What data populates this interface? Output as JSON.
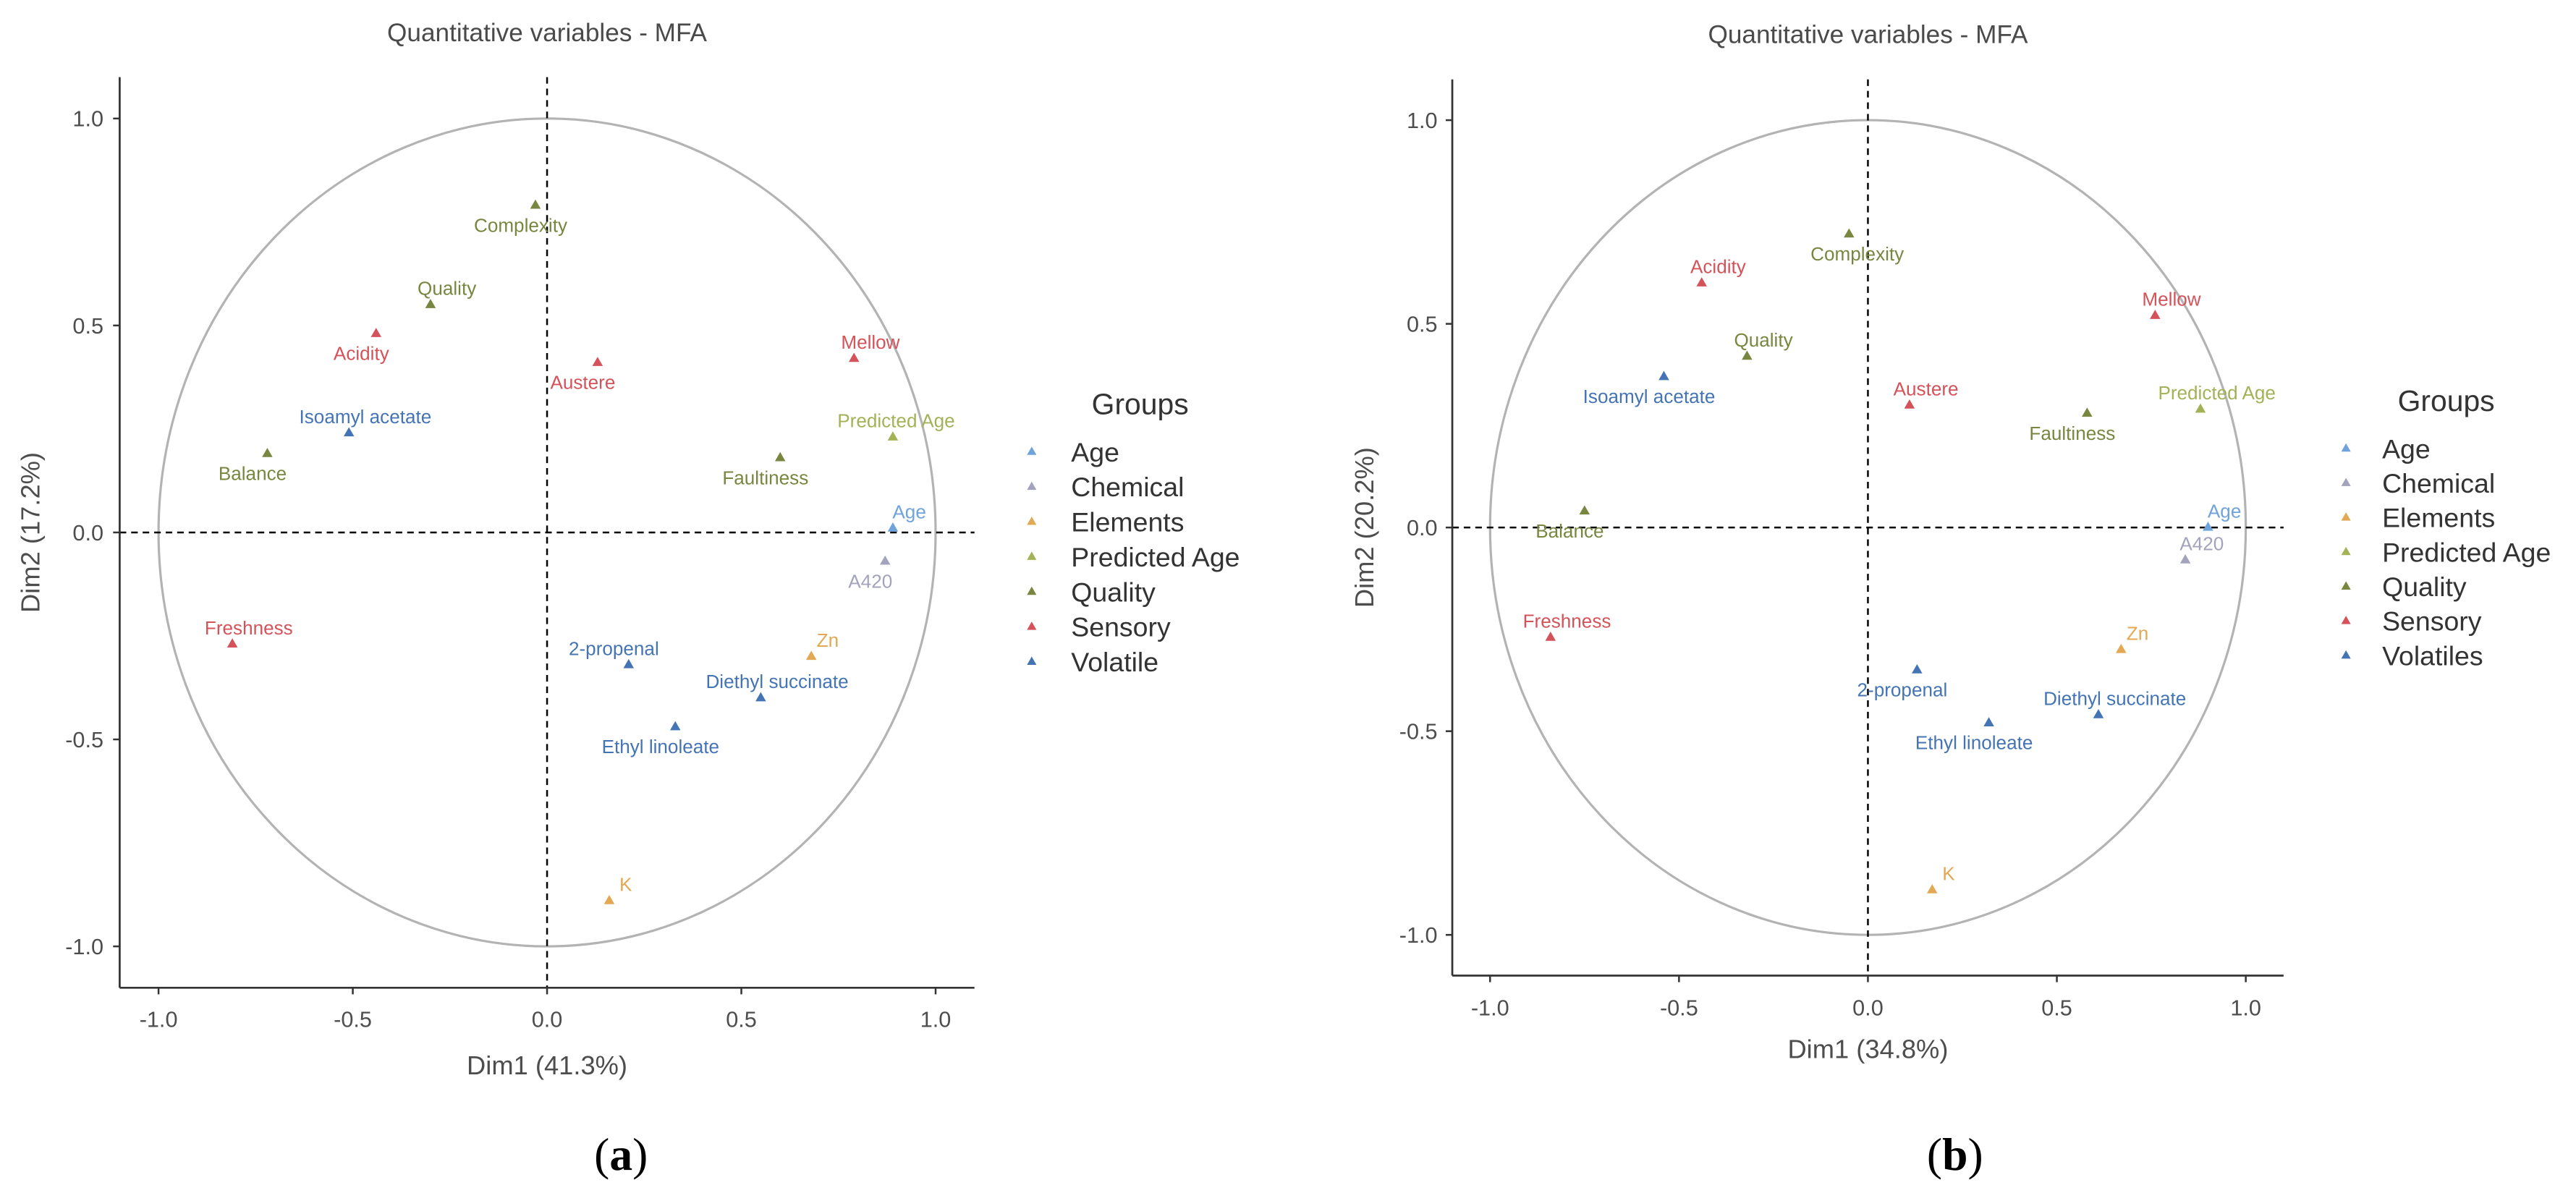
{
  "chart_data": [
    {
      "type": "scatter",
      "panel_label": [
        "(",
        "a",
        ")"
      ],
      "title": "Quantitative variables - MFA",
      "xlabel": "Dim1 (41.3%)",
      "ylabel": "Dim2 (17.2%)",
      "xlim": [
        -1.1,
        1.1
      ],
      "ylim": [
        -1.1,
        1.1
      ],
      "xticks": [
        "-1.0",
        "-0.5",
        "0.0",
        "0.5",
        "1.0"
      ],
      "yticks": [
        "-1.0",
        "-0.5",
        "0.0",
        "0.5",
        "1.0"
      ],
      "correlation_circle_radius": 1,
      "reference_lines": {
        "x": 0,
        "y": 0,
        "style": "dashed"
      },
      "colors": {
        "axis": "#333333",
        "circle": "#b3b3b3",
        "reference": "#000000"
      },
      "legend": {
        "title": "Groups",
        "position": "right",
        "items": [
          {
            "name": "Age",
            "color": "#6fa3dc"
          },
          {
            "name": "Chemical",
            "color": "#a3a3bd"
          },
          {
            "name": "Elements",
            "color": "#e3a853"
          },
          {
            "name": "Predicted Age",
            "color": "#a3b257"
          },
          {
            "name": "Quality",
            "color": "#788640"
          },
          {
            "name": "Sensory",
            "color": "#d4535a"
          },
          {
            "name": "Volatile",
            "color": "#4474b4"
          }
        ]
      },
      "points": [
        {
          "label": "Complexity",
          "group": "Quality",
          "x": -0.03,
          "y": 0.79,
          "label_pos": "below-left"
        },
        {
          "label": "Quality",
          "group": "Quality",
          "x": -0.3,
          "y": 0.55,
          "label_pos": "above-right"
        },
        {
          "label": "Acidity",
          "group": "Sensory",
          "x": -0.44,
          "y": 0.48,
          "label_pos": "below-left"
        },
        {
          "label": "Austere",
          "group": "Sensory",
          "x": 0.13,
          "y": 0.41,
          "label_pos": "below-left"
        },
        {
          "label": "Mellow",
          "group": "Sensory",
          "x": 0.79,
          "y": 0.42,
          "label_pos": "above-right"
        },
        {
          "label": "Isoamyl acetate",
          "group": "Volatile",
          "x": -0.51,
          "y": 0.24,
          "label_pos": "above-right"
        },
        {
          "label": "Predicted Age",
          "group": "Predicted Age",
          "x": 0.89,
          "y": 0.23,
          "label_pos": "above"
        },
        {
          "label": "Balance",
          "group": "Quality",
          "x": -0.72,
          "y": 0.19,
          "label_pos": "below-left"
        },
        {
          "label": "Faultiness",
          "group": "Quality",
          "x": 0.6,
          "y": 0.18,
          "label_pos": "below-left"
        },
        {
          "label": "Age",
          "group": "Age",
          "x": 0.89,
          "y": 0.01,
          "label_pos": "above-right"
        },
        {
          "label": "A420",
          "group": "Chemical",
          "x": 0.87,
          "y": -0.07,
          "label_pos": "below-left"
        },
        {
          "label": "Freshness",
          "group": "Sensory",
          "x": -0.81,
          "y": -0.27,
          "label_pos": "above-right"
        },
        {
          "label": "2-propenal",
          "group": "Volatile",
          "x": 0.21,
          "y": -0.32,
          "label_pos": "above-left"
        },
        {
          "label": "Zn",
          "group": "Elements",
          "x": 0.68,
          "y": -0.3,
          "label_pos": "above-right"
        },
        {
          "label": "Diethyl succinate",
          "group": "Volatile",
          "x": 0.55,
          "y": -0.4,
          "label_pos": "above-right"
        },
        {
          "label": "Ethyl linoleate",
          "group": "Volatile",
          "x": 0.33,
          "y": -0.47,
          "label_pos": "below-left"
        },
        {
          "label": "K",
          "group": "Elements",
          "x": 0.16,
          "y": -0.89,
          "label_pos": "above-right"
        }
      ]
    },
    {
      "type": "scatter",
      "panel_label": [
        "(",
        "b",
        ")"
      ],
      "title": "Quantitative variables - MFA",
      "xlabel": "Dim1 (34.8%)",
      "ylabel": "Dim2 (20.2%)",
      "xlim": [
        -1.1,
        1.1
      ],
      "ylim": [
        -1.1,
        1.1
      ],
      "xticks": [
        "-1.0",
        "-0.5",
        "0.0",
        "0.5",
        "1.0"
      ],
      "yticks": [
        "-1.0",
        "-0.5",
        "0.0",
        "0.5",
        "1.0"
      ],
      "correlation_circle_radius": 1,
      "reference_lines": {
        "x": 0,
        "y": 0,
        "style": "dashed"
      },
      "colors": {
        "axis": "#333333",
        "circle": "#b3b3b3",
        "reference": "#000000"
      },
      "legend": {
        "title": "Groups",
        "position": "right",
        "items": [
          {
            "name": "Age",
            "color": "#6fa3dc"
          },
          {
            "name": "Chemical",
            "color": "#a3a3bd"
          },
          {
            "name": "Elements",
            "color": "#e3a853"
          },
          {
            "name": "Predicted Age",
            "color": "#a3b257"
          },
          {
            "name": "Quality",
            "color": "#788640"
          },
          {
            "name": "Sensory",
            "color": "#d4535a"
          },
          {
            "name": "Volatiles",
            "color": "#4474b4"
          }
        ]
      },
      "points": [
        {
          "label": "Complexity",
          "group": "Quality",
          "x": -0.05,
          "y": 0.72,
          "label_pos": "below"
        },
        {
          "label": "Acidity",
          "group": "Sensory",
          "x": -0.44,
          "y": 0.6,
          "label_pos": "above-right"
        },
        {
          "label": "Mellow",
          "group": "Sensory",
          "x": 0.76,
          "y": 0.52,
          "label_pos": "above-right"
        },
        {
          "label": "Quality",
          "group": "Quality",
          "x": -0.32,
          "y": 0.42,
          "label_pos": "above-right"
        },
        {
          "label": "Isoamyl acetate",
          "group": "Volatiles",
          "x": -0.54,
          "y": 0.37,
          "label_pos": "below-left"
        },
        {
          "label": "Austere",
          "group": "Sensory",
          "x": 0.11,
          "y": 0.3,
          "label_pos": "above-right"
        },
        {
          "label": "Predicted Age",
          "group": "Predicted Age",
          "x": 0.88,
          "y": 0.29,
          "label_pos": "above-right"
        },
        {
          "label": "Faultiness",
          "group": "Quality",
          "x": 0.58,
          "y": 0.28,
          "label_pos": "below-left"
        },
        {
          "label": "Balance",
          "group": "Quality",
          "x": -0.75,
          "y": 0.04,
          "label_pos": "below-left"
        },
        {
          "label": "Age",
          "group": "Age",
          "x": 0.9,
          "y": 0.0,
          "label_pos": "above-right"
        },
        {
          "label": "A420",
          "group": "Chemical",
          "x": 0.84,
          "y": -0.08,
          "label_pos": "above-right"
        },
        {
          "label": "Freshness",
          "group": "Sensory",
          "x": -0.84,
          "y": -0.27,
          "label_pos": "above-right"
        },
        {
          "label": "Zn",
          "group": "Elements",
          "x": 0.67,
          "y": -0.3,
          "label_pos": "above-right"
        },
        {
          "label": "2-propenal",
          "group": "Volatiles",
          "x": 0.13,
          "y": -0.35,
          "label_pos": "below-left"
        },
        {
          "label": "Ethyl linoleate",
          "group": "Volatiles",
          "x": 0.32,
          "y": -0.48,
          "label_pos": "below-left"
        },
        {
          "label": "Diethyl succinate",
          "group": "Volatiles",
          "x": 0.61,
          "y": -0.46,
          "label_pos": "above-right"
        },
        {
          "label": "K",
          "group": "Elements",
          "x": 0.17,
          "y": -0.89,
          "label_pos": "above-right"
        }
      ]
    }
  ]
}
